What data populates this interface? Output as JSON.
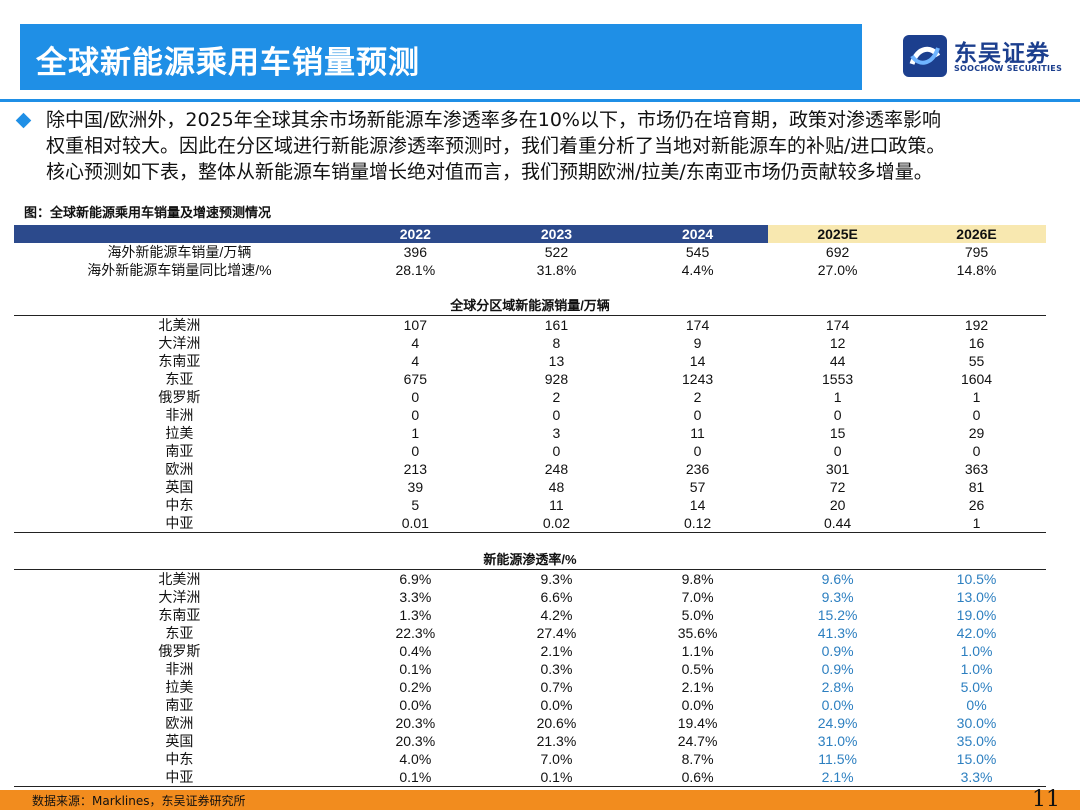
{
  "header": {
    "title": "全球新能源乘用车销量预测",
    "logo_cn": "东吴证券",
    "logo_en": "SOOCHOW SECURITIES"
  },
  "paragraph": {
    "lines": [
      "除中国/欧洲外，2025年全球其余市场新能源车渗透率多在10%以下，市场仍在培育期，政策对渗透率影响",
      "权重相对较大。因此在分区域进行新能源渗透率预测时，我们着重分析了当地对新能源车的补贴/进口政策。",
      "核心预测如下表，整体从新能源车销量增长绝对值而言，我们预期欧洲/拉美/东南亚市场仍贡献较多增量。"
    ]
  },
  "figure_caption": "图：全球新能源乘用车销量及增速预测情况",
  "table": {
    "years": [
      "2022",
      "2023",
      "2024",
      "2025E",
      "2026E"
    ],
    "overseas": [
      {
        "label": "海外新能源车销量/万辆",
        "values": [
          "396",
          "522",
          "545",
          "692",
          "795"
        ]
      },
      {
        "label": "海外新能源车销量同比增速/%",
        "values": [
          "28.1%",
          "31.8%",
          "4.4%",
          "27.0%",
          "14.8%"
        ]
      }
    ],
    "sales_title": "全球分区域新能源销量/万辆",
    "sales": [
      {
        "label": "北美洲",
        "values": [
          "107",
          "161",
          "174",
          "174",
          "192"
        ]
      },
      {
        "label": "大洋洲",
        "values": [
          "4",
          "8",
          "9",
          "12",
          "16"
        ]
      },
      {
        "label": "东南亚",
        "values": [
          "4",
          "13",
          "14",
          "44",
          "55"
        ]
      },
      {
        "label": "东亚",
        "values": [
          "675",
          "928",
          "1243",
          "1553",
          "1604"
        ]
      },
      {
        "label": "俄罗斯",
        "values": [
          "0",
          "2",
          "2",
          "1",
          "1"
        ]
      },
      {
        "label": "非洲",
        "values": [
          "0",
          "0",
          "0",
          "0",
          "0"
        ]
      },
      {
        "label": "拉美",
        "values": [
          "1",
          "3",
          "11",
          "15",
          "29"
        ]
      },
      {
        "label": "南亚",
        "values": [
          "0",
          "0",
          "0",
          "0",
          "0"
        ]
      },
      {
        "label": "欧洲",
        "values": [
          "213",
          "248",
          "236",
          "301",
          "363"
        ]
      },
      {
        "label": "英国",
        "values": [
          "39",
          "48",
          "57",
          "72",
          "81"
        ]
      },
      {
        "label": "中东",
        "values": [
          "5",
          "11",
          "14",
          "20",
          "26"
        ]
      },
      {
        "label": "中亚",
        "values": [
          "0.01",
          "0.02",
          "0.12",
          "0.44",
          "1"
        ]
      }
    ],
    "pen_title": "新能源渗透率/%",
    "penetration": [
      {
        "label": "北美洲",
        "values": [
          "6.9%",
          "9.3%",
          "9.8%",
          "9.6%",
          "10.5%"
        ]
      },
      {
        "label": "大洋洲",
        "values": [
          "3.3%",
          "6.6%",
          "7.0%",
          "9.3%",
          "13.0%"
        ]
      },
      {
        "label": "东南亚",
        "values": [
          "1.3%",
          "4.2%",
          "5.0%",
          "15.2%",
          "19.0%"
        ]
      },
      {
        "label": "东亚",
        "values": [
          "22.3%",
          "27.4%",
          "35.6%",
          "41.3%",
          "42.0%"
        ]
      },
      {
        "label": "俄罗斯",
        "values": [
          "0.4%",
          "2.1%",
          "1.1%",
          "0.9%",
          "1.0%"
        ]
      },
      {
        "label": "非洲",
        "values": [
          "0.1%",
          "0.3%",
          "0.5%",
          "0.9%",
          "1.0%"
        ]
      },
      {
        "label": "拉美",
        "values": [
          "0.2%",
          "0.7%",
          "2.1%",
          "2.8%",
          "5.0%"
        ]
      },
      {
        "label": "南亚",
        "values": [
          "0.0%",
          "0.0%",
          "0.0%",
          "0.0%",
          "0%"
        ]
      },
      {
        "label": "欧洲",
        "values": [
          "20.3%",
          "20.6%",
          "19.4%",
          "24.9%",
          "30.0%"
        ]
      },
      {
        "label": "英国",
        "values": [
          "20.3%",
          "21.3%",
          "24.7%",
          "31.0%",
          "35.0%"
        ]
      },
      {
        "label": "中东",
        "values": [
          "4.0%",
          "7.0%",
          "8.7%",
          "11.5%",
          "15.0%"
        ]
      },
      {
        "label": "中亚",
        "values": [
          "0.1%",
          "0.1%",
          "0.6%",
          "2.1%",
          "3.3%"
        ]
      }
    ],
    "colors": {
      "header_bg": "#2c4a8c",
      "estimate_header_bg": "#f8e8b0",
      "forecast_text": "#2c7fc0"
    }
  },
  "footer": {
    "source": "数据来源：Marklines，东吴证券研究所",
    "page_number": "11"
  }
}
